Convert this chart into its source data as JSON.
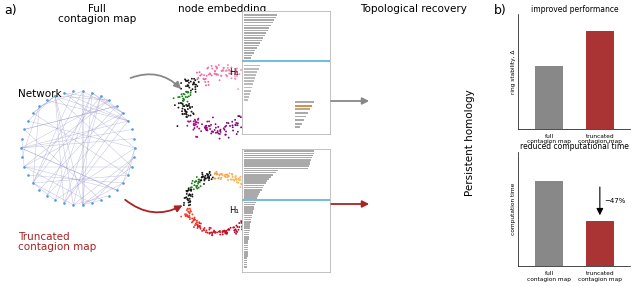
{
  "panel_a_label": "a)",
  "panel_b_label": "b)",
  "network_node_color": "#5599dd",
  "network_edge_color": "#9999cc",
  "bar_gray": "#888888",
  "bar_red": "#aa3333",
  "blue_line": "#77bbdd",
  "orange_line": "#ee8833",
  "improved_title": "improved performance",
  "reduced_title": "reduced computational time",
  "full_label": "full\ncontagion map",
  "trunc_label": "truncated\ncontagion map",
  "ring_stability_label": "ring stability, Δ",
  "computation_time_label": "computation time",
  "h1_label": "H₁",
  "minus47": "−47%",
  "node_embedding_label": "node embedding",
  "topological_recovery_label": "Topological recovery",
  "persistent_homology_label": "Persistent homology",
  "full_contagion_top": "Full",
  "full_contagion_bot": "contagion map",
  "network_label": "Network",
  "truncated_top": "Truncated",
  "truncated_bot": "contagion map",
  "arrow_gray": "#888888",
  "arrow_red": "#aa2222",
  "bar_improved_full": 0.58,
  "bar_improved_trunc": 0.9,
  "bar_reduced_full": 0.78,
  "bar_reduced_trunc": 0.41,
  "bg_color": "#ffffff"
}
